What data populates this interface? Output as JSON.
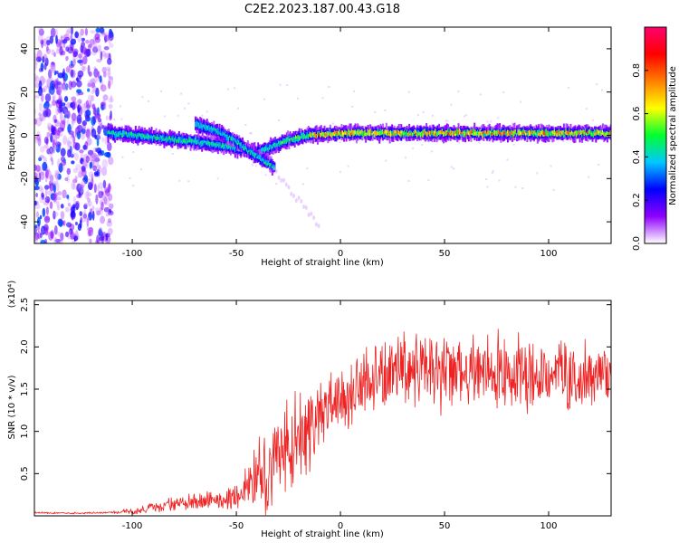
{
  "title": "C2E2.2023.187.00.43.G18",
  "colors": {
    "series": "#ee2222",
    "axis": "#000000",
    "background": "#ffffff"
  },
  "chart_data": [
    {
      "type": "heatmap",
      "xlabel": "Height of straight line (km)",
      "ylabel": "Frequency (Hz)",
      "xlim": [
        -147,
        130
      ],
      "ylim": [
        -50,
        50
      ],
      "xticks": [
        -100,
        -50,
        0,
        50,
        100
      ],
      "yticks": [
        -40,
        -20,
        0,
        20,
        40
      ],
      "grid": false,
      "colorbar": {
        "label": "Normalized spectral amplitude",
        "range": [
          0,
          1
        ],
        "ticks": [
          "0.0",
          "0.2",
          "0.4",
          "0.6",
          "0.8"
        ],
        "colormap": [
          "#ffffff",
          "#8f00ff",
          "#0000ff",
          "#00c8ff",
          "#00ff30",
          "#ffff00",
          "#ff7f00",
          "#ff0000",
          "#ff0070"
        ]
      },
      "features": [
        {
          "name": "main-trace-upper",
          "x": [
            -110,
            -90,
            -70,
            -55,
            -45,
            -40,
            -35,
            -30,
            -25,
            -15,
            0,
            50,
            100,
            130
          ],
          "y": [
            1,
            -1,
            -3,
            -5,
            -7,
            -8,
            -6,
            -4,
            -2,
            0,
            1,
            1,
            1,
            1
          ]
        },
        {
          "name": "main-trace-lower",
          "x": [
            -70,
            -60,
            -50,
            -45,
            -40,
            -35,
            -30
          ],
          "y": [
            5,
            2,
            -3,
            -7,
            -10,
            -13,
            -16
          ]
        },
        {
          "name": "noise-region",
          "xrange": [
            -147,
            -110
          ],
          "yrange": [
            -50,
            50
          ]
        }
      ]
    },
    {
      "type": "line",
      "xlabel": "Height of straight line (km)",
      "ylabel": "SNR (10 * v/v)",
      "yscale_label": "(x10⁴)",
      "xlim": [
        -147,
        130
      ],
      "ylim": [
        0,
        2.55
      ],
      "xticks": [
        -100,
        -50,
        0,
        50,
        100
      ],
      "yticks": [
        0.5,
        1.0,
        1.5,
        2.0,
        2.5
      ],
      "ytick_labels": [
        "0.5",
        "1.0",
        "1.5",
        "2.0",
        "2.5"
      ],
      "grid": false,
      "series": [
        {
          "x": [
            -147,
            -130,
            -110,
            -100,
            -90,
            -80,
            -70,
            -60,
            -55,
            -50,
            -45,
            -40,
            -35,
            -30,
            -25,
            -20,
            -15,
            -10,
            -5,
            0,
            5,
            10,
            20,
            30,
            40,
            50,
            60,
            70,
            80,
            90,
            100,
            110,
            120,
            130
          ],
          "y": [
            0.04,
            0.03,
            0.04,
            0.06,
            0.1,
            0.14,
            0.17,
            0.18,
            0.2,
            0.25,
            0.35,
            0.5,
            0.6,
            0.7,
            0.8,
            0.95,
            1.05,
            1.2,
            1.3,
            1.4,
            1.45,
            1.55,
            1.65,
            1.7,
            1.75,
            1.7,
            1.72,
            1.75,
            1.7,
            1.72,
            1.7,
            1.7,
            1.72,
            1.65
          ],
          "spread": [
            0.01,
            0.01,
            0.01,
            0.04,
            0.06,
            0.08,
            0.1,
            0.1,
            0.12,
            0.18,
            0.3,
            0.45,
            0.5,
            0.55,
            0.55,
            0.55,
            0.5,
            0.45,
            0.42,
            0.4,
            0.4,
            0.4,
            0.42,
            0.45,
            0.45,
            0.45,
            0.45,
            0.45,
            0.45,
            0.45,
            0.45,
            0.42,
            0.4,
            0.35
          ]
        }
      ]
    }
  ]
}
